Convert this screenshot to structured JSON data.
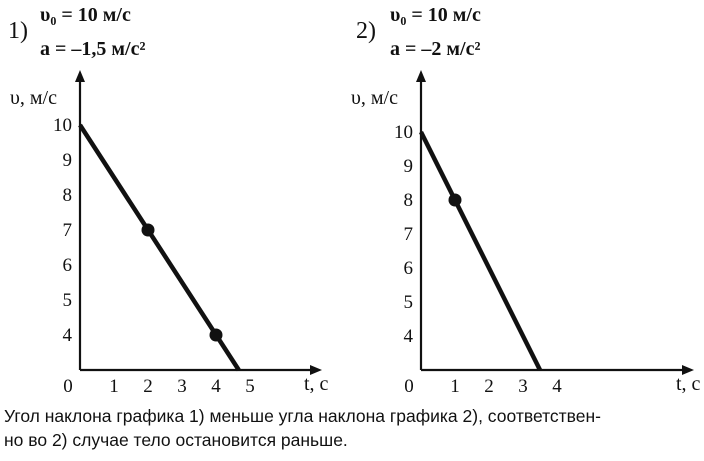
{
  "panels": [
    {
      "number": "1)",
      "param_v0": "υ₀ = 10 м/с",
      "param_a": "a = –1,5 м/с²"
    },
    {
      "number": "2)",
      "param_v0": "υ₀ = 10 м/с",
      "param_a": "a = –2 м/с²"
    }
  ],
  "caption": {
    "line1": "Угол наклона графика 1) меньше угла наклона графика 2), соответствен-",
    "line2": "но во 2) случае тело остановится раньше."
  },
  "chart_data": [
    {
      "type": "line",
      "xlabel": "t, с",
      "ylabel": "υ, м/с",
      "origin_label": "0",
      "xlim": [
        0,
        5.7
      ],
      "ylim": [
        3,
        11
      ],
      "x_ticks": [
        1,
        2,
        3,
        4,
        5
      ],
      "y_ticks": [
        4,
        5,
        6,
        7,
        8,
        9,
        10
      ],
      "series": [
        {
          "x": [
            0,
            4.67
          ],
          "y": [
            10,
            3
          ]
        }
      ],
      "points": [
        {
          "x": 2,
          "y": 7
        },
        {
          "x": 4,
          "y": 4
        }
      ]
    },
    {
      "type": "line",
      "xlabel": "t, с",
      "ylabel": "υ, м/с",
      "origin_label": "0",
      "xlim": [
        0,
        6.3
      ],
      "ylim": [
        3,
        11
      ],
      "x_ticks": [
        1,
        2,
        3,
        4
      ],
      "y_ticks": [
        4,
        5,
        6,
        7,
        8,
        9,
        10
      ],
      "series": [
        {
          "x": [
            0,
            3.5
          ],
          "y": [
            10,
            3
          ]
        }
      ],
      "points": [
        {
          "x": 1,
          "y": 8
        }
      ]
    }
  ]
}
